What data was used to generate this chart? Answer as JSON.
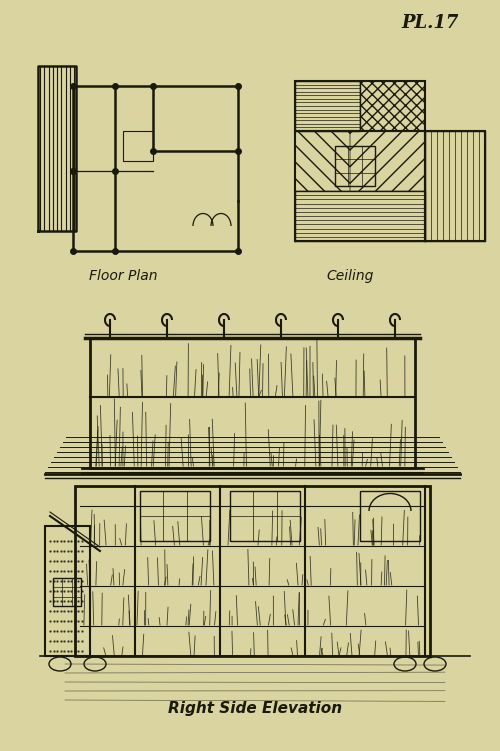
{
  "bg_color": "#d9d4a0",
  "line_color": "#1a1a0a",
  "title_plate": "PL.17",
  "label_floor": "Floor Plan",
  "label_ceiling": "Ceiling",
  "label_elevation": "Right Side Elevation",
  "figsize": [
    5.0,
    7.51
  ],
  "dpi": 100
}
